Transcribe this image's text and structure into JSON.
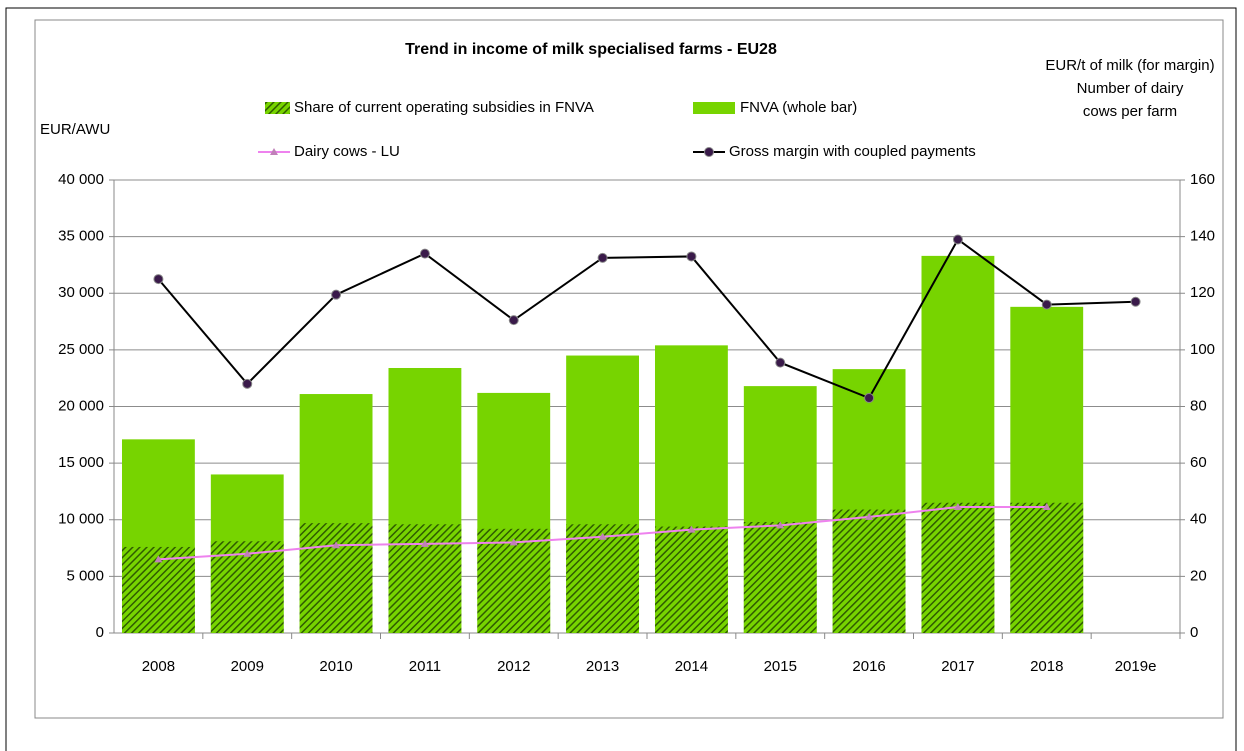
{
  "chart_data": {
    "type": "combo",
    "title": "Trend in income of milk specialised farms - EU28",
    "y_label": "EUR/AWU",
    "y2_label": [
      "EUR/t of milk (for margin)",
      "Number of dairy",
      "cows per farm"
    ],
    "categories": [
      "2008",
      "2009",
      "2010",
      "2011",
      "2012",
      "2013",
      "2014",
      "2015",
      "2016",
      "2017",
      "2018",
      "2019e"
    ],
    "series": [
      {
        "name": "FNVA (whole bar)",
        "type": "bar",
        "color": "#77d400",
        "values": [
          17100,
          14000,
          21100,
          23400,
          21200,
          24500,
          25400,
          21800,
          23300,
          33300,
          28800,
          null
        ]
      },
      {
        "name": "Share of current operating subsidies in FNVA",
        "type": "bar",
        "pattern": "hatch",
        "color": "#2f5c00",
        "values": [
          7600,
          8100,
          9700,
          9600,
          9200,
          9600,
          9400,
          9800,
          10900,
          11500,
          11500,
          null
        ]
      },
      {
        "name": "Dairy cows - LU",
        "type": "line",
        "axis": "y2",
        "color": "#ee82ee",
        "marker_color": "#c080b8",
        "values": [
          26,
          28,
          31,
          31.5,
          32,
          34,
          36.5,
          38,
          41,
          44.5,
          44.5,
          null
        ]
      },
      {
        "name": "Gross margin with coupled payments",
        "type": "line",
        "axis": "y2",
        "color": "#000000",
        "marker_color": "#3a1a4a",
        "values": [
          125,
          88,
          119.5,
          134,
          110.5,
          132.5,
          133,
          95.5,
          83,
          139,
          116,
          117
        ]
      }
    ],
    "ylim": [
      0,
      40000
    ],
    "yticks": [
      {
        "value": 0,
        "label": "0"
      },
      {
        "value": 5000,
        "label": "5 000"
      },
      {
        "value": 10000,
        "label": "10 000"
      },
      {
        "value": 15000,
        "label": "15 000"
      },
      {
        "value": 20000,
        "label": "20 000"
      },
      {
        "value": 25000,
        "label": "25 000"
      },
      {
        "value": 30000,
        "label": "30 000"
      },
      {
        "value": 35000,
        "label": "35 000"
      },
      {
        "value": 40000,
        "label": "40 000"
      }
    ],
    "y2lim": [
      0,
      160
    ],
    "y2ticks": [
      0,
      20,
      40,
      60,
      80,
      100,
      120,
      140,
      160
    ],
    "grid": true
  }
}
